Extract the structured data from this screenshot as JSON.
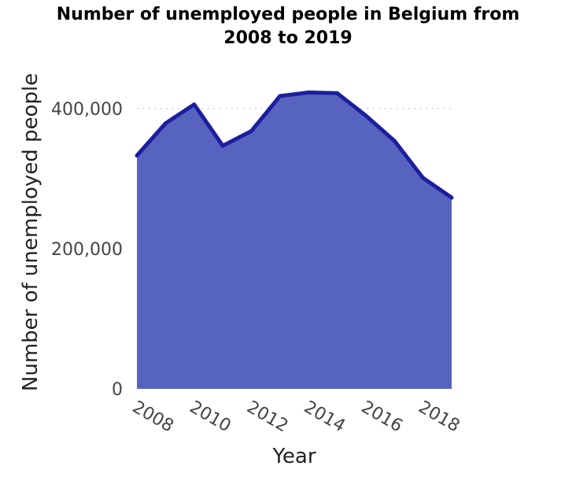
{
  "chart_data": {
    "type": "area",
    "title_lines": [
      "Number of unemployed people in Belgium from",
      "2008 to 2019"
    ],
    "xlabel": "Year",
    "ylabel": "Number of unemployed people",
    "x": [
      2008,
      2009,
      2010,
      2011,
      2012,
      2013,
      2014,
      2015,
      2016,
      2017,
      2018,
      2019
    ],
    "series": [
      {
        "values": [
          333000,
          379000,
          406000,
          347000,
          368000,
          418000,
          423000,
          422000,
          390000,
          354000,
          301000,
          273000
        ]
      }
    ],
    "xlim": [
      2008,
      2019
    ],
    "ylim": [
      0,
      400000
    ],
    "x_ticks": [
      2008,
      2010,
      2012,
      2014,
      2016,
      2018
    ],
    "y_ticks": [
      0,
      200000,
      400000
    ],
    "y_tick_labels": [
      "0",
      "200,000",
      "400,000"
    ],
    "grid": "horizontal dotted",
    "colors": {
      "fill": "#5764bf",
      "line": "#1b1f9e",
      "grid": "#bbbbbb",
      "tick_text": "#444444"
    }
  }
}
